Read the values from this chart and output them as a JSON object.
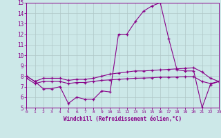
{
  "x": [
    0,
    1,
    2,
    3,
    4,
    5,
    6,
    7,
    8,
    9,
    10,
    11,
    12,
    13,
    14,
    15,
    16,
    17,
    18,
    19,
    20,
    21,
    22,
    23
  ],
  "line1": [
    8.0,
    7.5,
    6.8,
    6.8,
    7.0,
    5.4,
    6.0,
    5.8,
    5.8,
    6.6,
    6.5,
    12.0,
    12.0,
    13.2,
    14.2,
    14.7,
    15.0,
    11.6,
    8.6,
    8.5,
    8.5,
    5.0,
    7.2,
    7.5
  ],
  "line2": [
    8.0,
    7.5,
    7.8,
    7.8,
    7.8,
    7.6,
    7.7,
    7.7,
    7.8,
    8.0,
    8.2,
    8.3,
    8.4,
    8.5,
    8.5,
    8.55,
    8.6,
    8.65,
    8.7,
    8.75,
    8.8,
    8.4,
    7.8,
    7.5
  ],
  "line3": [
    7.8,
    7.3,
    7.5,
    7.5,
    7.5,
    7.3,
    7.4,
    7.4,
    7.5,
    7.6,
    7.65,
    7.7,
    7.75,
    7.8,
    7.82,
    7.85,
    7.9,
    7.9,
    7.92,
    7.95,
    7.95,
    7.5,
    7.3,
    7.5
  ],
  "background_color": "#cce8e8",
  "grid_color": "#b0c8c8",
  "line_color": "#880088",
  "xlabel": "Windchill (Refroidissement éolien,°C)",
  "ylim": [
    5,
    15
  ],
  "xlim": [
    0,
    23
  ],
  "yticks": [
    5,
    6,
    7,
    8,
    9,
    10,
    11,
    12,
    13,
    14,
    15
  ],
  "xticks": [
    0,
    1,
    2,
    3,
    4,
    5,
    6,
    7,
    8,
    9,
    10,
    11,
    12,
    13,
    14,
    15,
    16,
    17,
    18,
    19,
    20,
    21,
    22,
    23
  ]
}
